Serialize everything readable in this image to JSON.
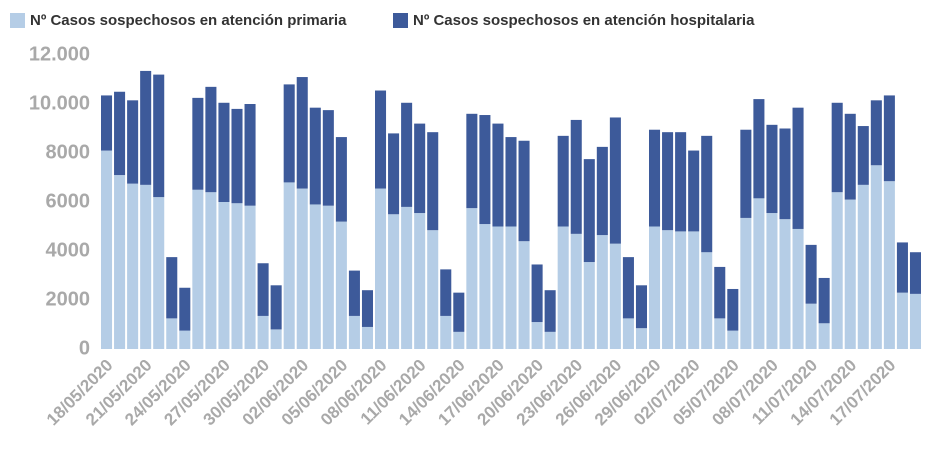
{
  "chart_data": {
    "type": "stacked-bar",
    "categories": [
      "18/05/2020",
      null,
      null,
      "21/05/2020",
      null,
      null,
      "24/05/2020",
      null,
      null,
      "27/05/2020",
      null,
      null,
      "30/05/2020",
      null,
      null,
      "02/06/2020",
      null,
      null,
      "05/06/2020",
      null,
      null,
      "08/06/2020",
      null,
      null,
      "11/06/2020",
      null,
      null,
      "14/06/2020",
      null,
      null,
      "17/06/2020",
      null,
      null,
      "20/06/2020",
      null,
      null,
      "23/06/2020",
      null,
      null,
      "26/06/2020",
      null,
      null,
      "29/06/2020",
      null,
      null,
      "02/07/2020",
      null,
      null,
      "05/07/2020",
      null,
      null,
      "08/07/2020",
      null,
      null,
      "11/07/2020",
      null,
      null,
      "14/07/2020",
      null,
      null,
      "17/07/2020",
      null,
      null
    ],
    "series": [
      {
        "name": "Nº Casos sospechosos en atención primaria",
        "color": "#b5cde6",
        "values": [
          8100,
          7100,
          6750,
          6700,
          6200,
          1250,
          750,
          6500,
          6400,
          6000,
          5950,
          5850,
          1350,
          800,
          6800,
          6550,
          5900,
          5850,
          5200,
          1350,
          900,
          6550,
          5500,
          5800,
          5550,
          4850,
          1350,
          700,
          5750,
          5100,
          5000,
          5000,
          4400,
          1100,
          700,
          5000,
          4700,
          3550,
          4650,
          4300,
          1250,
          850,
          5000,
          4850,
          4800,
          4800,
          3950,
          1250,
          750,
          5350,
          6150,
          5550,
          5300,
          4900,
          1850,
          1050,
          6400,
          6100,
          6700,
          7500,
          6850,
          2300,
          2250
        ]
      },
      {
        "name": "Nº Casos sospechosos en atención hospitalaria",
        "color": "#3d5a9a",
        "values": [
          2250,
          3400,
          3400,
          4650,
          5000,
          2500,
          1750,
          3750,
          4300,
          4050,
          3850,
          4150,
          2150,
          1800,
          4000,
          4550,
          3950,
          3900,
          3450,
          1850,
          1500,
          4000,
          3300,
          4250,
          3650,
          4000,
          1900,
          1600,
          3850,
          4450,
          4200,
          3650,
          4100,
          2350,
          1700,
          3700,
          4650,
          4200,
          3600,
          5150,
          2500,
          1750,
          3950,
          4000,
          4050,
          3300,
          4750,
          2100,
          1700,
          3600,
          4050,
          3600,
          3700,
          4950,
          2400,
          1850,
          3650,
          3500,
          2400,
          2650,
          3500,
          2050,
          1700
        ]
      }
    ],
    "ylim": [
      0,
      12000
    ],
    "yticks": [
      0,
      2000,
      4000,
      6000,
      8000,
      {
        "value": 10000,
        "label": "10.000"
      },
      {
        "value": 12000,
        "label": "12.000"
      }
    ]
  }
}
